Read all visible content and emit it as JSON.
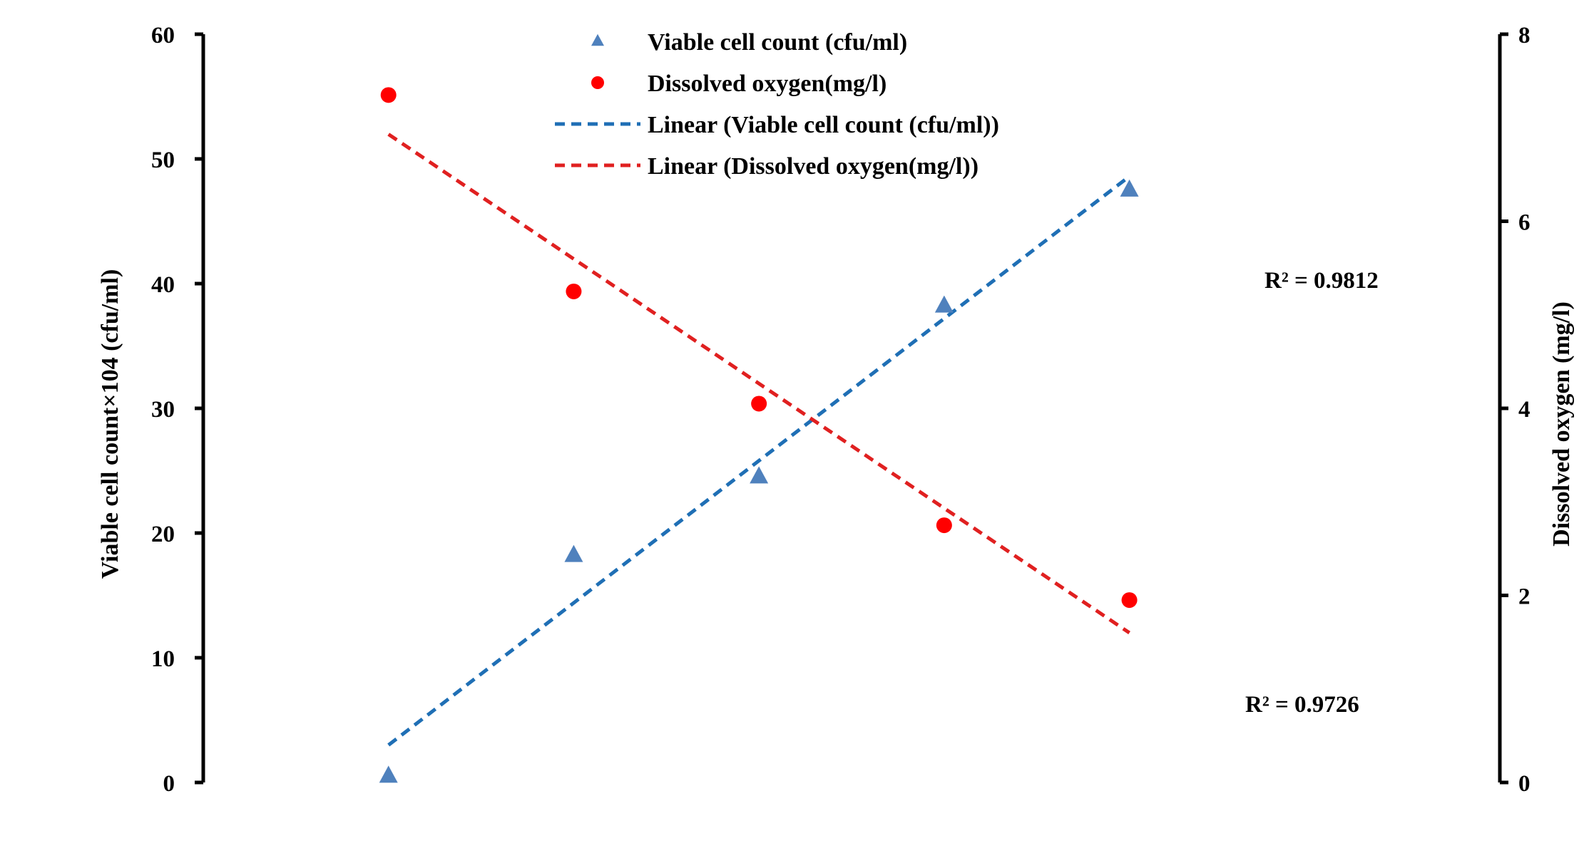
{
  "chart_data": {
    "type": "scatter",
    "x": [
      1,
      2,
      3,
      4,
      5
    ],
    "xlim": [
      0,
      7
    ],
    "series": [
      {
        "name": "Viable cell count (cfu/ml)",
        "axis": "left",
        "marker": "triangle",
        "color": "#4F81BD",
        "values": [
          0.5,
          18.2,
          24.5,
          38.2,
          47.5
        ]
      },
      {
        "name": "Dissolved oxygen(mg/l)",
        "axis": "right",
        "marker": "circle",
        "color": "#FF0000",
        "values": [
          7.35,
          5.25,
          4.05,
          2.75,
          1.95
        ]
      }
    ],
    "trendlines": [
      {
        "name": "Linear (Viable cell count (cfu/ml))",
        "axis": "left",
        "color": "#1F6FB5",
        "style": "dashed",
        "endpoints": [
          [
            1,
            3.0
          ],
          [
            5,
            48.6
          ]
        ],
        "r2_label": "R² = 0.9812"
      },
      {
        "name": "Linear (Dissolved oxygen(mg/l))",
        "axis": "right",
        "color": "#E02020",
        "style": "dashed",
        "endpoints": [
          [
            1,
            6.93
          ],
          [
            5,
            1.6
          ]
        ],
        "r2_label": "R² = 0.9726"
      }
    ],
    "y_left": {
      "label": "Viable cell count×104 (cfu/ml)",
      "ylim": [
        0,
        60
      ],
      "ticks": [
        "0",
        "10",
        "20",
        "30",
        "40",
        "50",
        "60"
      ]
    },
    "y_right": {
      "label": "Dissolved oxygen  (mg/l)",
      "ylim": [
        0,
        8
      ],
      "ticks": [
        "0",
        "2",
        "4",
        "6",
        "8"
      ]
    },
    "grid": false,
    "legend_position": "top-center"
  }
}
